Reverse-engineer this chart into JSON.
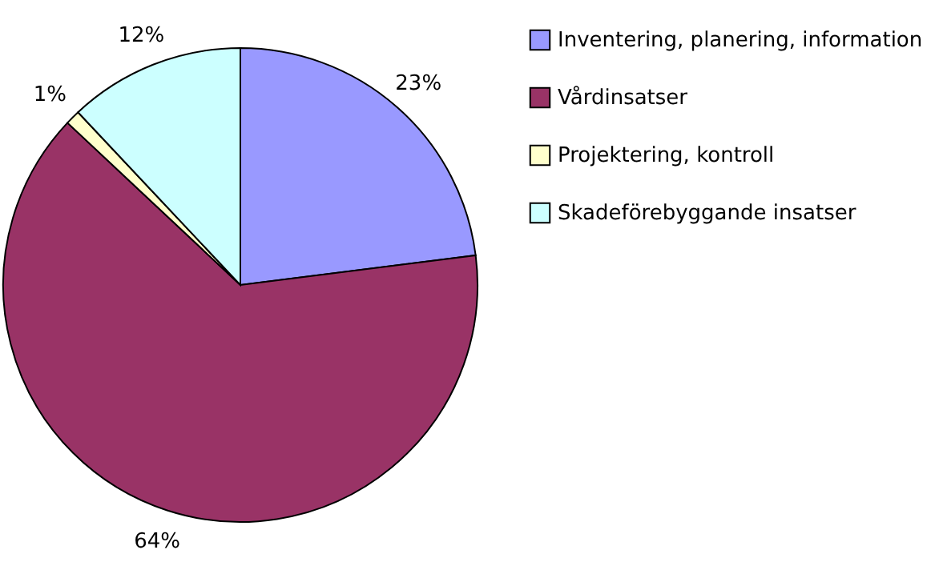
{
  "chart_data": {
    "type": "pie",
    "categories": [
      "Inventering, planering, information",
      "Vårdinsatser",
      "Projektering, kontroll",
      "Skadeförebyggande insatser"
    ],
    "values": [
      23,
      64,
      1,
      12
    ],
    "colors": [
      "#9999ff",
      "#993366",
      "#ffffcc",
      "#ccffff"
    ],
    "value_labels": [
      "23%",
      "64%",
      "1%",
      "12%"
    ],
    "legend": "right"
  }
}
